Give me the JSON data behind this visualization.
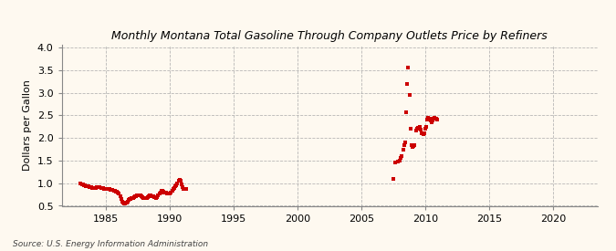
{
  "title": "Monthly Montana Total Gasoline Through Company Outlets Price by Refiners",
  "ylabel": "Dollars per Gallon",
  "source": "Source: U.S. Energy Information Administration",
  "xlim": [
    1981.5,
    2023.5
  ],
  "ylim": [
    0.5,
    4.05
  ],
  "xticks": [
    1985,
    1990,
    1995,
    2000,
    2005,
    2010,
    2015,
    2020
  ],
  "yticks": [
    0.5,
    1.0,
    1.5,
    2.0,
    2.5,
    3.0,
    3.5,
    4.0
  ],
  "bg_color": "#fef9f0",
  "marker_color": "#cc0000",
  "data_points": [
    [
      1983.0,
      0.99
    ],
    [
      1983.08,
      0.98
    ],
    [
      1983.17,
      0.97
    ],
    [
      1983.25,
      0.96
    ],
    [
      1983.33,
      0.95
    ],
    [
      1983.42,
      0.94
    ],
    [
      1983.5,
      0.94
    ],
    [
      1983.58,
      0.93
    ],
    [
      1983.67,
      0.92
    ],
    [
      1983.75,
      0.92
    ],
    [
      1983.83,
      0.91
    ],
    [
      1983.92,
      0.9
    ],
    [
      1984.0,
      0.9
    ],
    [
      1984.08,
      0.9
    ],
    [
      1984.17,
      0.9
    ],
    [
      1984.25,
      0.91
    ],
    [
      1984.33,
      0.92
    ],
    [
      1984.42,
      0.92
    ],
    [
      1984.5,
      0.91
    ],
    [
      1984.58,
      0.9
    ],
    [
      1984.67,
      0.89
    ],
    [
      1984.75,
      0.89
    ],
    [
      1984.83,
      0.88
    ],
    [
      1984.92,
      0.88
    ],
    [
      1985.0,
      0.88
    ],
    [
      1985.08,
      0.87
    ],
    [
      1985.17,
      0.87
    ],
    [
      1985.25,
      0.87
    ],
    [
      1985.33,
      0.86
    ],
    [
      1985.42,
      0.86
    ],
    [
      1985.5,
      0.85
    ],
    [
      1985.58,
      0.84
    ],
    [
      1985.67,
      0.83
    ],
    [
      1985.75,
      0.82
    ],
    [
      1985.83,
      0.81
    ],
    [
      1985.92,
      0.8
    ],
    [
      1986.0,
      0.78
    ],
    [
      1986.08,
      0.72
    ],
    [
      1986.17,
      0.65
    ],
    [
      1986.25,
      0.6
    ],
    [
      1986.33,
      0.57
    ],
    [
      1986.42,
      0.55
    ],
    [
      1986.5,
      0.55
    ],
    [
      1986.58,
      0.57
    ],
    [
      1986.67,
      0.6
    ],
    [
      1986.75,
      0.63
    ],
    [
      1986.83,
      0.65
    ],
    [
      1986.92,
      0.66
    ],
    [
      1987.0,
      0.67
    ],
    [
      1987.08,
      0.68
    ],
    [
      1987.17,
      0.7
    ],
    [
      1987.25,
      0.71
    ],
    [
      1987.33,
      0.72
    ],
    [
      1987.42,
      0.73
    ],
    [
      1987.5,
      0.74
    ],
    [
      1987.58,
      0.74
    ],
    [
      1987.67,
      0.73
    ],
    [
      1987.75,
      0.72
    ],
    [
      1987.83,
      0.7
    ],
    [
      1987.92,
      0.68
    ],
    [
      1988.0,
      0.67
    ],
    [
      1988.08,
      0.67
    ],
    [
      1988.17,
      0.68
    ],
    [
      1988.25,
      0.7
    ],
    [
      1988.33,
      0.72
    ],
    [
      1988.42,
      0.73
    ],
    [
      1988.5,
      0.73
    ],
    [
      1988.58,
      0.72
    ],
    [
      1988.67,
      0.71
    ],
    [
      1988.75,
      0.7
    ],
    [
      1988.83,
      0.69
    ],
    [
      1988.92,
      0.68
    ],
    [
      1989.0,
      0.7
    ],
    [
      1989.08,
      0.73
    ],
    [
      1989.17,
      0.77
    ],
    [
      1989.25,
      0.8
    ],
    [
      1989.33,
      0.83
    ],
    [
      1989.42,
      0.83
    ],
    [
      1989.5,
      0.82
    ],
    [
      1989.58,
      0.8
    ],
    [
      1989.67,
      0.79
    ],
    [
      1989.75,
      0.78
    ],
    [
      1989.83,
      0.77
    ],
    [
      1989.92,
      0.77
    ],
    [
      1990.0,
      0.78
    ],
    [
      1990.08,
      0.8
    ],
    [
      1990.17,
      0.83
    ],
    [
      1990.25,
      0.87
    ],
    [
      1990.33,
      0.9
    ],
    [
      1990.42,
      0.93
    ],
    [
      1990.5,
      0.96
    ],
    [
      1990.58,
      1.0
    ],
    [
      1990.67,
      1.05
    ],
    [
      1990.75,
      1.08
    ],
    [
      1990.83,
      1.05
    ],
    [
      1990.92,
      0.98
    ],
    [
      1991.0,
      0.92
    ],
    [
      1991.08,
      0.88
    ],
    [
      1991.17,
      0.87
    ],
    [
      1991.25,
      0.87
    ],
    [
      2007.5,
      1.1
    ],
    [
      2007.67,
      1.45
    ],
    [
      2007.83,
      1.48
    ],
    [
      2008.0,
      1.5
    ],
    [
      2008.08,
      1.55
    ],
    [
      2008.17,
      1.6
    ],
    [
      2008.25,
      1.75
    ],
    [
      2008.33,
      1.85
    ],
    [
      2008.42,
      1.9
    ],
    [
      2008.5,
      2.57
    ],
    [
      2008.58,
      3.2
    ],
    [
      2008.67,
      3.55
    ],
    [
      2008.75,
      2.95
    ],
    [
      2008.83,
      2.2
    ],
    [
      2008.92,
      1.85
    ],
    [
      2009.0,
      1.8
    ],
    [
      2009.08,
      1.82
    ],
    [
      2009.17,
      1.85
    ],
    [
      2009.25,
      2.17
    ],
    [
      2009.33,
      2.2
    ],
    [
      2009.42,
      2.22
    ],
    [
      2009.5,
      2.23
    ],
    [
      2009.58,
      2.25
    ],
    [
      2009.67,
      2.18
    ],
    [
      2009.75,
      2.1
    ],
    [
      2009.83,
      2.08
    ],
    [
      2009.92,
      2.1
    ],
    [
      2010.0,
      2.2
    ],
    [
      2010.08,
      2.25
    ],
    [
      2010.17,
      2.4
    ],
    [
      2010.25,
      2.45
    ],
    [
      2010.33,
      2.42
    ],
    [
      2010.42,
      2.38
    ],
    [
      2010.5,
      2.35
    ],
    [
      2010.58,
      2.38
    ],
    [
      2010.67,
      2.42
    ],
    [
      2010.75,
      2.45
    ],
    [
      2010.83,
      2.42
    ],
    [
      2010.92,
      2.4
    ]
  ]
}
